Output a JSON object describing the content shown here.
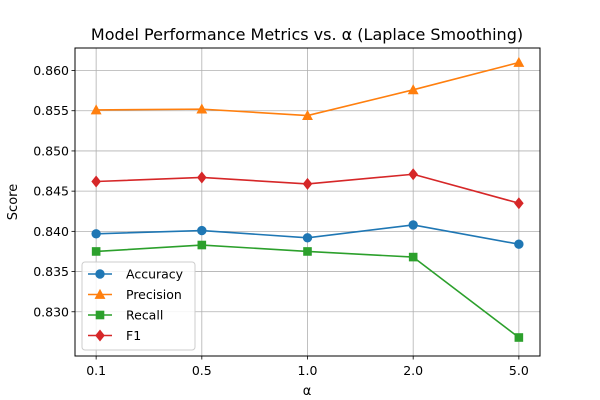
{
  "chart_data": {
    "type": "line",
    "title": "Model Performance Metrics vs. α (Laplace Smoothing)",
    "xlabel": "α",
    "ylabel": "Score",
    "categories": [
      "0.1",
      "0.5",
      "1.0",
      "2.0",
      "5.0"
    ],
    "ylim": [
      0.8245,
      0.8628
    ],
    "yticks": [
      "0.830",
      "0.835",
      "0.840",
      "0.845",
      "0.850",
      "0.855",
      "0.860"
    ],
    "grid": true,
    "legend_position": "lower-left",
    "series": [
      {
        "name": "Accuracy",
        "color": "#1f77b4",
        "marker": "circle",
        "values": [
          0.8397,
          0.8401,
          0.8392,
          0.8408,
          0.8384
        ]
      },
      {
        "name": "Precision",
        "color": "#ff7f0e",
        "marker": "triangle",
        "values": [
          0.8551,
          0.8552,
          0.8544,
          0.8576,
          0.861
        ]
      },
      {
        "name": "Recall",
        "color": "#2ca02c",
        "marker": "square",
        "values": [
          0.8375,
          0.8383,
          0.8375,
          0.8368,
          0.8268
        ]
      },
      {
        "name": "F1",
        "color": "#d62728",
        "marker": "diamond",
        "values": [
          0.8462,
          0.8467,
          0.8459,
          0.8471,
          0.8435
        ]
      }
    ]
  }
}
